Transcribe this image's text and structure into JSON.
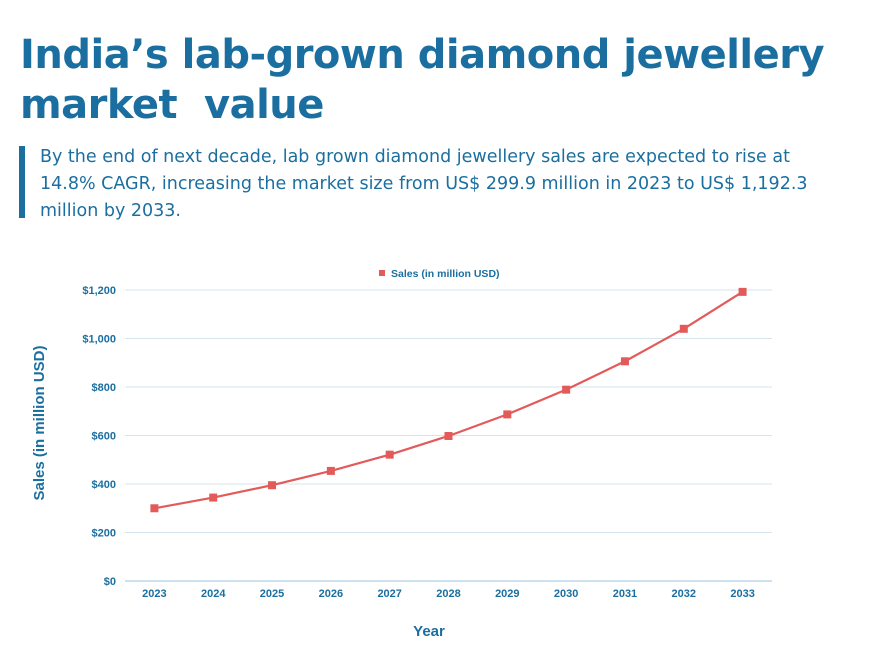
{
  "header": {
    "title_line1": "India’s lab-grown diamond jewellery",
    "title_line2": "market  value",
    "subtitle": "By the end of next decade, lab grown diamond jewellery sales are expected to rise at 14.8% CAGR, increasing the market size from US$ 299.9 million in 2023 to US$ 1,192.3 million by 2033."
  },
  "colors": {
    "accent": "#1a6fa0",
    "series": "#e35a5a",
    "grid": "#d6e4ee"
  },
  "chart_data": {
    "type": "line",
    "title": "",
    "xlabel": "Year",
    "ylabel": "Sales (in million USD)",
    "categories": [
      "2023",
      "2024",
      "2025",
      "2026",
      "2027",
      "2028",
      "2029",
      "2030",
      "2031",
      "2032",
      "2033"
    ],
    "series": [
      {
        "name": "Sales (in million USD)",
        "values": [
          299.9,
          344,
          395,
          454,
          521,
          598,
          687,
          789,
          906,
          1040,
          1192.3
        ]
      }
    ],
    "ylim": [
      0,
      1200
    ],
    "yticks": [
      0,
      200,
      400,
      600,
      800,
      1000,
      1200
    ],
    "ytick_labels": [
      "$0",
      "$200",
      "$400",
      "$600",
      "$800",
      "$1,000",
      "$1,200"
    ],
    "grid": true,
    "legend": "top-center"
  }
}
